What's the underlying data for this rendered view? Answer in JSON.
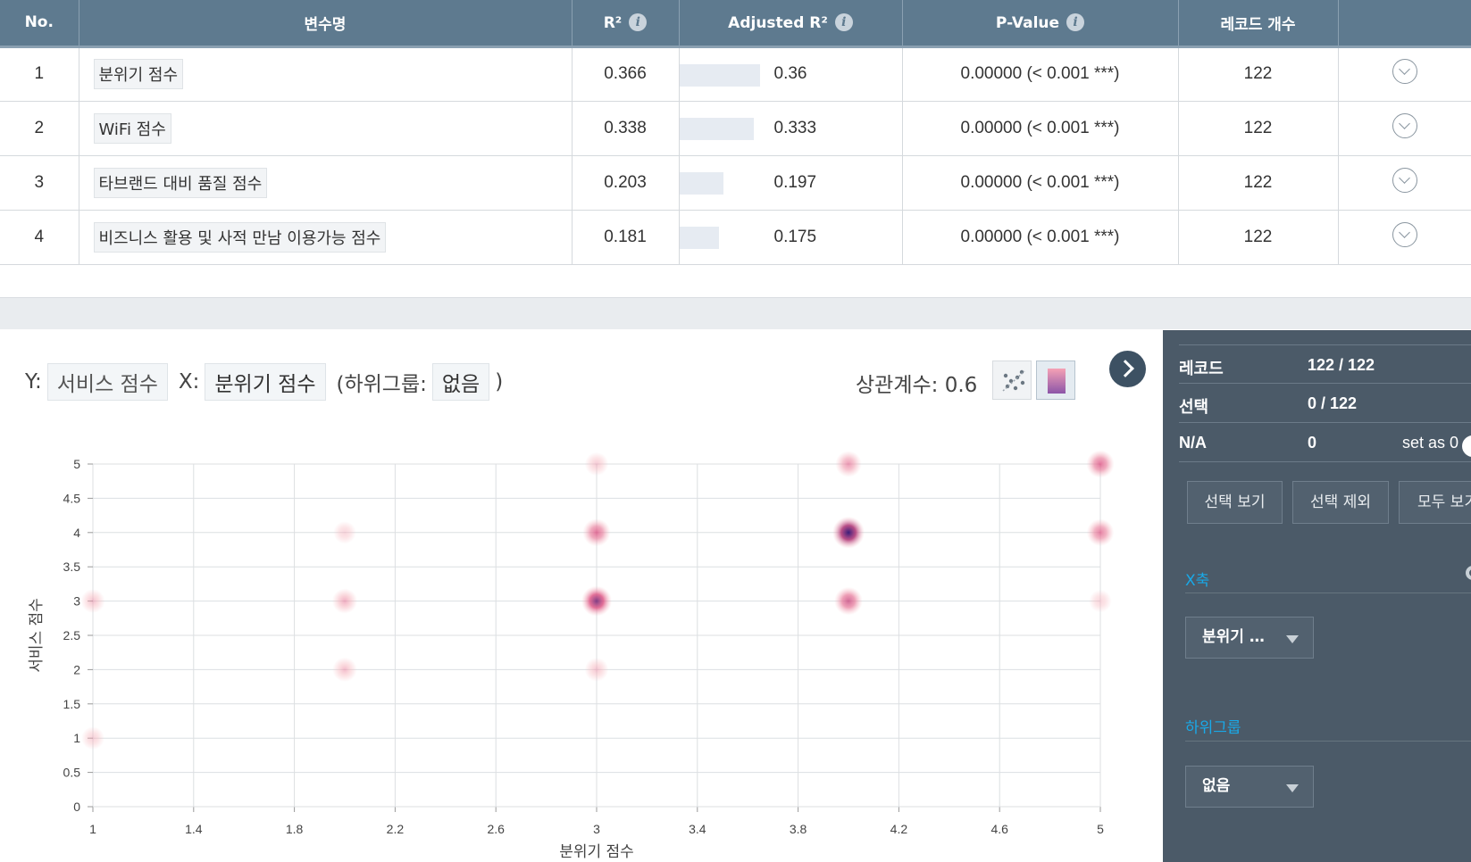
{
  "table": {
    "headers": {
      "no": "No.",
      "var": "변수명",
      "r2": "R²",
      "adj": "Adjusted R²",
      "p": "P-Value",
      "count": "레코드 개수"
    },
    "rows": [
      {
        "no": "1",
        "var": "분위기 점수",
        "r2": "0.366",
        "adj": "0.36",
        "adj_value": 0.36,
        "p": "0.00000 (< 0.001 ***)",
        "count": "122"
      },
      {
        "no": "2",
        "var": "WiFi 점수",
        "r2": "0.338",
        "adj": "0.333",
        "adj_value": 0.333,
        "p": "0.00000 (< 0.001 ***)",
        "count": "122"
      },
      {
        "no": "3",
        "var": "타브랜드 대비 품질 점수",
        "r2": "0.203",
        "adj": "0.197",
        "adj_value": 0.197,
        "p": "0.00000 (< 0.001 ***)",
        "count": "122"
      },
      {
        "no": "4",
        "var": "비즈니스 활용 및 사적 만남 이용가능 점수",
        "r2": "0.181",
        "adj": "0.175",
        "adj_value": 0.175,
        "p": "0.00000 (< 0.001 ***)",
        "count": "122"
      }
    ]
  },
  "chart_header": {
    "y_label": "Y:",
    "y_value": "서비스 점수",
    "x_label": "X:",
    "x_value": "분위기 점수",
    "subgroup_open": "(하위그룹:",
    "subgroup_value": "없음",
    "subgroup_close": ")",
    "correlation": "상관계수: 0.6"
  },
  "chart_data": {
    "type": "heatmap",
    "xlabel": "분위기 점수",
    "ylabel": "서비스 점수",
    "xlim": [
      1,
      5
    ],
    "ylim": [
      0,
      5
    ],
    "x_ticks": [
      "1",
      "1.4",
      "1.8",
      "2.2",
      "2.6",
      "3",
      "3.4",
      "3.8",
      "4.2",
      "4.6",
      "5"
    ],
    "y_ticks": [
      "0",
      "0.5",
      "1",
      "1.5",
      "2",
      "2.5",
      "3",
      "3.5",
      "4",
      "4.5",
      "5"
    ],
    "grid": true,
    "points": [
      {
        "x": 1,
        "y": 3,
        "density": 0.25
      },
      {
        "x": 1,
        "y": 1,
        "density": 0.15
      },
      {
        "x": 2,
        "y": 4,
        "density": 0.12
      },
      {
        "x": 2,
        "y": 3,
        "density": 0.35
      },
      {
        "x": 2,
        "y": 2,
        "density": 0.28
      },
      {
        "x": 3,
        "y": 5,
        "density": 0.2
      },
      {
        "x": 3,
        "y": 4,
        "density": 0.6
      },
      {
        "x": 3,
        "y": 3,
        "density": 0.85
      },
      {
        "x": 3,
        "y": 2,
        "density": 0.22
      },
      {
        "x": 4,
        "y": 5,
        "density": 0.45
      },
      {
        "x": 4,
        "y": 4,
        "density": 1.0
      },
      {
        "x": 4,
        "y": 3,
        "density": 0.65
      },
      {
        "x": 5,
        "y": 5,
        "density": 0.6
      },
      {
        "x": 5,
        "y": 4,
        "density": 0.55
      },
      {
        "x": 5,
        "y": 3,
        "density": 0.12
      }
    ],
    "colors": {
      "low": "#f7b8bf",
      "mid": "#d9457a",
      "high": "#3a1d7a"
    }
  },
  "panel": {
    "record_label": "레코드",
    "record_value": "122 / 122",
    "select_label": "선택",
    "select_value": "0 / 122",
    "na_label": "N/A",
    "na_value": "0",
    "set_zero": "set as 0",
    "btn_show": "선택 보기",
    "btn_exclude": "선택 제외",
    "btn_all": "모두 보기",
    "x_axis_title": "X축",
    "x_axis_value": "분위기 …",
    "subgroup_title": "하위그룹",
    "subgroup_value": "없음"
  }
}
